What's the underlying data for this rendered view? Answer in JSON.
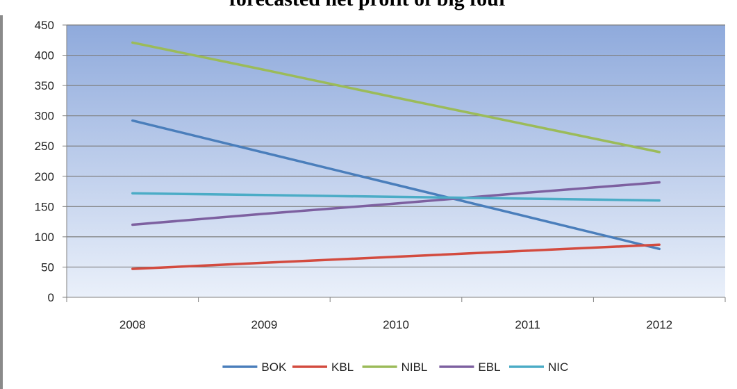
{
  "chart_data": {
    "type": "line",
    "title": "forecasted net profit of big four",
    "xlabel": "",
    "ylabel": "",
    "categories": [
      "2008",
      "2009",
      "2010",
      "2011",
      "2012"
    ],
    "ylim": [
      0,
      450
    ],
    "yticks": [
      0,
      50,
      100,
      150,
      200,
      250,
      300,
      350,
      400,
      450
    ],
    "grid": true,
    "legend": "bottom",
    "series": [
      {
        "name": "BOK",
        "color": "#4a7ebb",
        "values": [
          292,
          239,
          186,
          133,
          80
        ]
      },
      {
        "name": "KBL",
        "color": "#d34b3f",
        "values": [
          47,
          57,
          67,
          77,
          87
        ]
      },
      {
        "name": "NIBL",
        "color": "#9bbb59",
        "values": [
          421,
          376,
          330,
          285,
          240
        ]
      },
      {
        "name": "EBL",
        "color": "#7d60a0",
        "values": [
          120,
          138,
          155,
          173,
          190
        ]
      },
      {
        "name": "NIC",
        "color": "#4bacc6",
        "values": [
          172,
          169,
          166,
          163,
          160
        ]
      }
    ],
    "colors": {
      "plot_top": "#8faadc",
      "plot_bottom": "#eaf0fa",
      "grid": "#7f7f7f"
    }
  }
}
